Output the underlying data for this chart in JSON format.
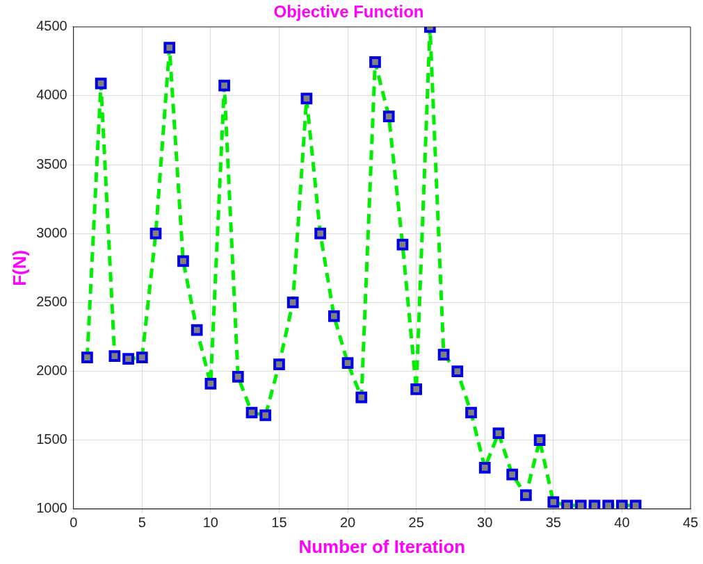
{
  "chart_data": {
    "type": "line",
    "title": "Objective Function",
    "xlabel": "Number of Iteration",
    "ylabel": "F(N)",
    "x": [
      1,
      2,
      3,
      4,
      5,
      6,
      7,
      8,
      9,
      10,
      11,
      12,
      13,
      14,
      15,
      16,
      17,
      18,
      19,
      20,
      21,
      22,
      23,
      24,
      25,
      26,
      27,
      28,
      29,
      30,
      31,
      32,
      33,
      34,
      35,
      36,
      37,
      38,
      39,
      40,
      41
    ],
    "series": [
      {
        "color": "#00ee00",
        "values": [
          2100,
          4090,
          2110,
          2090,
          2100,
          3000,
          4350,
          2800,
          2300,
          1910,
          4075,
          1960,
          1700,
          1680,
          2050,
          2500,
          3980,
          3000,
          2400,
          2060,
          1810,
          4245,
          3850,
          2920,
          1870,
          4500,
          2120,
          2000,
          1700,
          1300,
          1550,
          1250,
          1100,
          1500,
          1050,
          1025,
          1025,
          1025,
          1025,
          1025,
          1025
        ]
      }
    ],
    "xlim": [
      0,
      45
    ],
    "xticks": [
      0,
      5,
      10,
      15,
      20,
      25,
      30,
      35,
      40,
      45
    ],
    "ylim": [
      1000,
      4500
    ],
    "yticks": [
      1000,
      1500,
      2000,
      2500,
      3000,
      3500,
      4000,
      4500
    ],
    "grid": true,
    "legend": false,
    "marker": "square",
    "line_style": "dashed"
  }
}
